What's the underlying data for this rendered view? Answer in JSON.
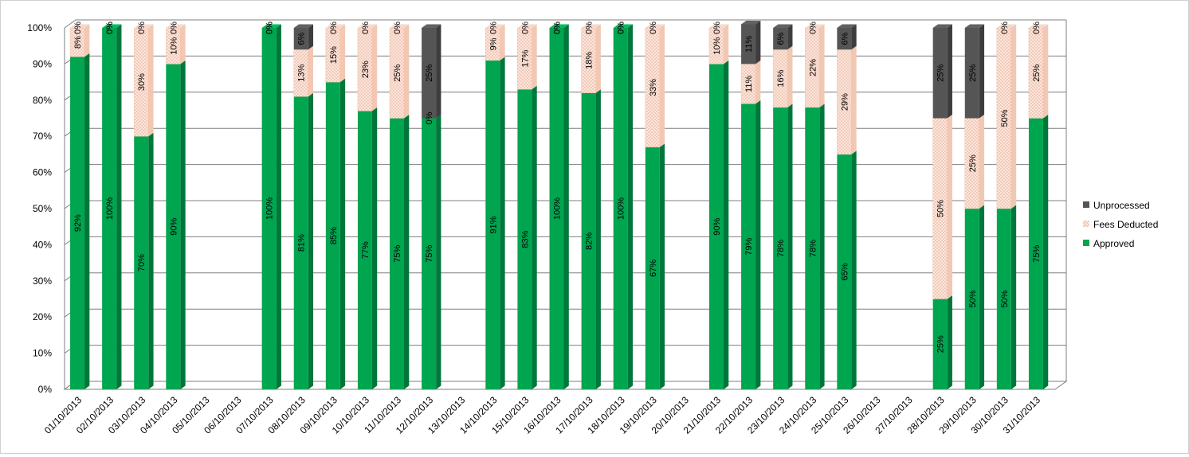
{
  "chart_data": {
    "type": "bar",
    "stacked": true,
    "percent": true,
    "three_d": true,
    "categories": [
      "01/10/2013",
      "02/10/2013",
      "03/10/2013",
      "04/10/2013",
      "05/10/2013",
      "06/10/2013",
      "07/10/2013",
      "08/10/2013",
      "09/10/2013",
      "10/10/2013",
      "11/10/2013",
      "12/10/2013",
      "13/10/2013",
      "14/10/2013",
      "15/10/2013",
      "16/10/2013",
      "17/10/2013",
      "18/10/2013",
      "19/10/2013",
      "20/10/2013",
      "21/10/2013",
      "22/10/2013",
      "23/10/2013",
      "24/10/2013",
      "25/10/2013",
      "26/10/2013",
      "27/10/2013",
      "28/10/2013",
      "29/10/2013",
      "30/10/2013",
      "31/10/2013"
    ],
    "series": [
      {
        "name": "Approved",
        "color": "#00a550",
        "values": [
          92,
          100,
          70,
          90,
          null,
          null,
          100,
          81,
          85,
          77,
          75,
          75,
          null,
          91,
          83,
          100,
          82,
          100,
          67,
          null,
          90,
          79,
          78,
          78,
          65,
          null,
          null,
          25,
          50,
          50,
          75
        ]
      },
      {
        "name": "Fees Deducted",
        "color": "#f8d5c4",
        "values": [
          8,
          0,
          30,
          10,
          null,
          null,
          0,
          13,
          15,
          23,
          25,
          0,
          null,
          9,
          17,
          0,
          18,
          0,
          33,
          null,
          10,
          11,
          16,
          22,
          29,
          null,
          null,
          50,
          25,
          50,
          25
        ]
      },
      {
        "name": "Unprocessed",
        "color": "#555555",
        "values": [
          0,
          0,
          0,
          0,
          null,
          null,
          0,
          6,
          0,
          0,
          0,
          25,
          null,
          0,
          0,
          0,
          0,
          0,
          0,
          null,
          0,
          11,
          6,
          0,
          6,
          null,
          null,
          25,
          25,
          0,
          0
        ]
      }
    ],
    "yticks": [
      "0%",
      "10%",
      "20%",
      "30%",
      "40%",
      "50%",
      "60%",
      "70%",
      "80%",
      "90%",
      "100%"
    ],
    "ylim": [
      0,
      100
    ],
    "grid": true,
    "legend_position": "right",
    "title": "",
    "xlabel": "",
    "ylabel": ""
  }
}
